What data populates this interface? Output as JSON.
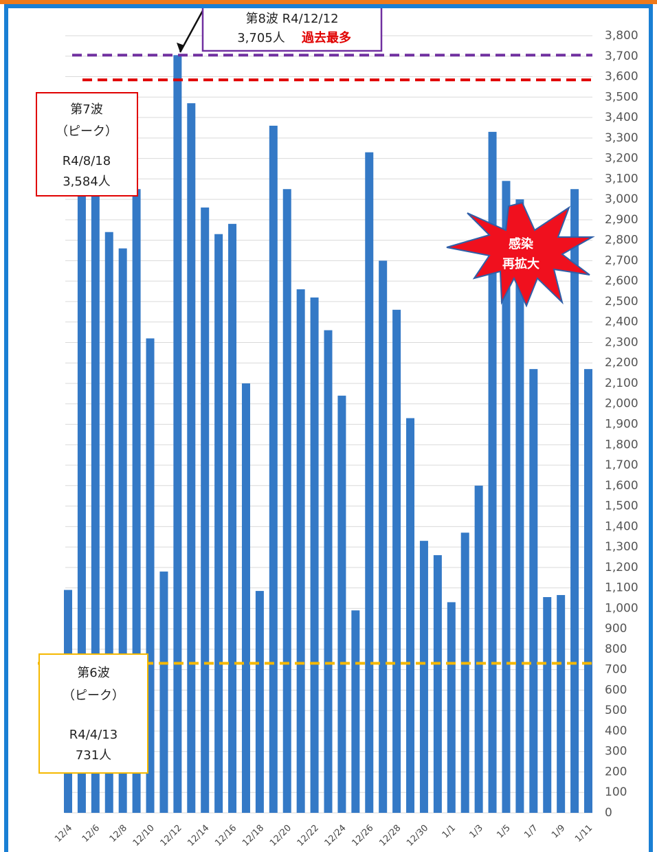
{
  "chart_data": {
    "type": "bar",
    "categories": [
      "12/4",
      null,
      "12/6",
      null,
      "12/8",
      null,
      "12/10",
      null,
      "12/12",
      null,
      "12/14",
      null,
      "12/16",
      null,
      "12/18",
      null,
      "12/20",
      null,
      "12/22",
      null,
      "12/24",
      null,
      "12/26",
      null,
      "12/28",
      null,
      "12/30",
      null,
      "1/1",
      null,
      "1/3",
      null,
      "1/5",
      null,
      "1/7",
      null,
      "1/9",
      null,
      "1/11"
    ],
    "values": [
      1090,
      3320,
      3070,
      2840,
      2760,
      3050,
      2320,
      1180,
      3705,
      3470,
      2960,
      2830,
      2880,
      2100,
      1085,
      3360,
      3050,
      2560,
      2520,
      2360,
      2040,
      990,
      3230,
      2700,
      2460,
      1930,
      1330,
      1260,
      1030,
      1370,
      1600,
      3330,
      3090,
      3000,
      2170,
      1055,
      1065,
      3050,
      2170
    ],
    "color": "#3479c6",
    "ylim": [
      0,
      3800
    ],
    "yticks": [
      0,
      100,
      200,
      300,
      400,
      500,
      600,
      700,
      800,
      900,
      {
        "value": 1000,
        "label": "1,000"
      },
      {
        "value": 1100,
        "label": "1,100"
      },
      {
        "value": 1200,
        "label": "1,200"
      },
      {
        "value": 1300,
        "label": "1,300"
      },
      {
        "value": 1400,
        "label": "1,400"
      },
      {
        "value": 1500,
        "label": "1,500"
      },
      {
        "value": 1600,
        "label": "1,600"
      },
      {
        "value": 1700,
        "label": "1,700"
      },
      {
        "value": 1800,
        "label": "1,800"
      },
      {
        "value": 1900,
        "label": "1,900"
      },
      {
        "value": 2000,
        "label": "2,000"
      },
      {
        "value": 2100,
        "label": "2,100"
      },
      {
        "value": 2200,
        "label": "2,200"
      },
      {
        "value": 2300,
        "label": "2,300"
      },
      {
        "value": 2400,
        "label": "2,400"
      },
      {
        "value": 2500,
        "label": "2,500"
      },
      {
        "value": 2600,
        "label": "2,600"
      },
      {
        "value": 2700,
        "label": "2,700"
      },
      {
        "value": 2800,
        "label": "2,800"
      },
      {
        "value": 2900,
        "label": "2,900"
      },
      {
        "value": 3000,
        "label": "3,000"
      },
      {
        "value": 3100,
        "label": "3,100"
      },
      {
        "value": 3200,
        "label": "3,200"
      },
      {
        "value": 3300,
        "label": "3,300"
      },
      {
        "value": 3400,
        "label": "3,400"
      },
      {
        "value": 3500,
        "label": "3,500"
      },
      {
        "value": 3600,
        "label": "3,600"
      },
      {
        "value": 3700,
        "label": "3,700"
      },
      {
        "value": 3800,
        "label": "3,800"
      }
    ],
    "grid": true,
    "reference_lines": [
      {
        "value": 3705,
        "color": "#7030a0"
      },
      {
        "value": 3584,
        "color": "#e00000"
      },
      {
        "value": 731,
        "color": "#f5b800"
      }
    ],
    "annotations": {
      "wave8": [
        "第8波 R4/12/12",
        "3,705人",
        "過去最多"
      ],
      "wave7": [
        "第7波",
        "（ピーク）",
        "R4/8/18",
        "3,584人"
      ],
      "wave6": [
        "第6波",
        "（ピーク）",
        "R4/4/13",
        "731人"
      ],
      "burst": [
        "感染",
        "再拡大"
      ]
    }
  }
}
